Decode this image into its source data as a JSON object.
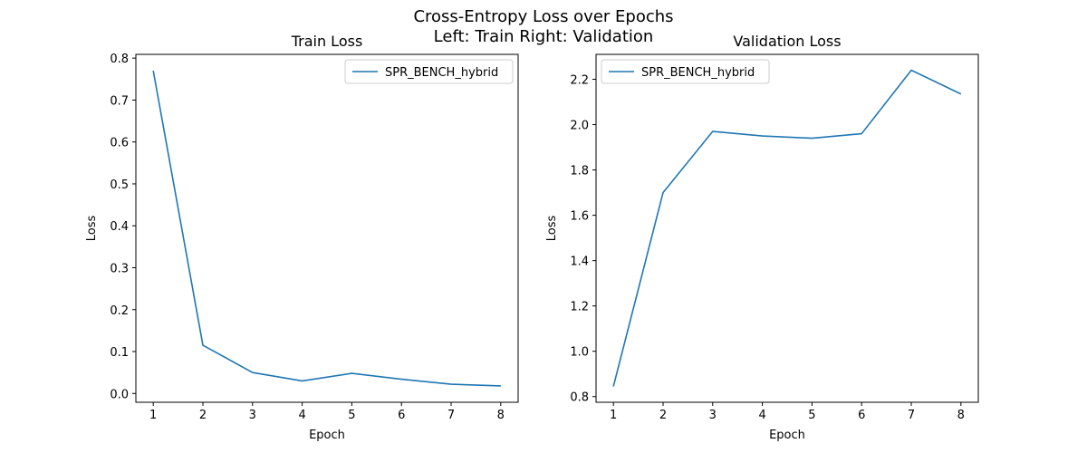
{
  "figure": {
    "title_line1": "Cross-Entropy Loss over Epochs",
    "title_line2": "Left: Train  Right: Validation"
  },
  "colors": {
    "series": "#1f77b4",
    "axis": "#000000",
    "legend_border": "#cccccc"
  },
  "chart_data": [
    {
      "type": "line",
      "title": "Train Loss",
      "xlabel": "Epoch",
      "ylabel": "Loss",
      "x": [
        1,
        2,
        3,
        4,
        5,
        6,
        7,
        8
      ],
      "xticks": [
        1,
        2,
        3,
        4,
        5,
        6,
        7,
        8
      ],
      "yticks": [
        0.0,
        0.1,
        0.2,
        0.3,
        0.4,
        0.5,
        0.6,
        0.7,
        0.8
      ],
      "ytick_labels": [
        "0.0",
        "0.1",
        "0.2",
        "0.3",
        "0.4",
        "0.5",
        "0.6",
        "0.7",
        "0.8"
      ],
      "xlim": [
        0.65,
        8.35
      ],
      "ylim": [
        -0.021,
        0.809
      ],
      "grid": false,
      "legend_position": "top-right",
      "series": [
        {
          "name": "SPR_BENCH_hybrid",
          "values": [
            0.77,
            0.115,
            0.05,
            0.03,
            0.048,
            0.034,
            0.022,
            0.018
          ]
        }
      ]
    },
    {
      "type": "line",
      "title": "Validation Loss",
      "xlabel": "Epoch",
      "ylabel": "Loss",
      "x": [
        1,
        2,
        3,
        4,
        5,
        6,
        7,
        8
      ],
      "xticks": [
        1,
        2,
        3,
        4,
        5,
        6,
        7,
        8
      ],
      "yticks": [
        0.8,
        1.0,
        1.2,
        1.4,
        1.6,
        1.8,
        2.0,
        2.2
      ],
      "ytick_labels": [
        "0.8",
        "1.0",
        "1.2",
        "1.4",
        "1.6",
        "1.8",
        "2.0",
        "2.2"
      ],
      "xlim": [
        0.65,
        8.35
      ],
      "ylim": [
        0.775,
        2.31
      ],
      "grid": false,
      "legend_position": "top-left",
      "series": [
        {
          "name": "SPR_BENCH_hybrid",
          "values": [
            0.845,
            1.7,
            1.97,
            1.95,
            1.94,
            1.96,
            2.24,
            2.135
          ]
        }
      ]
    }
  ]
}
